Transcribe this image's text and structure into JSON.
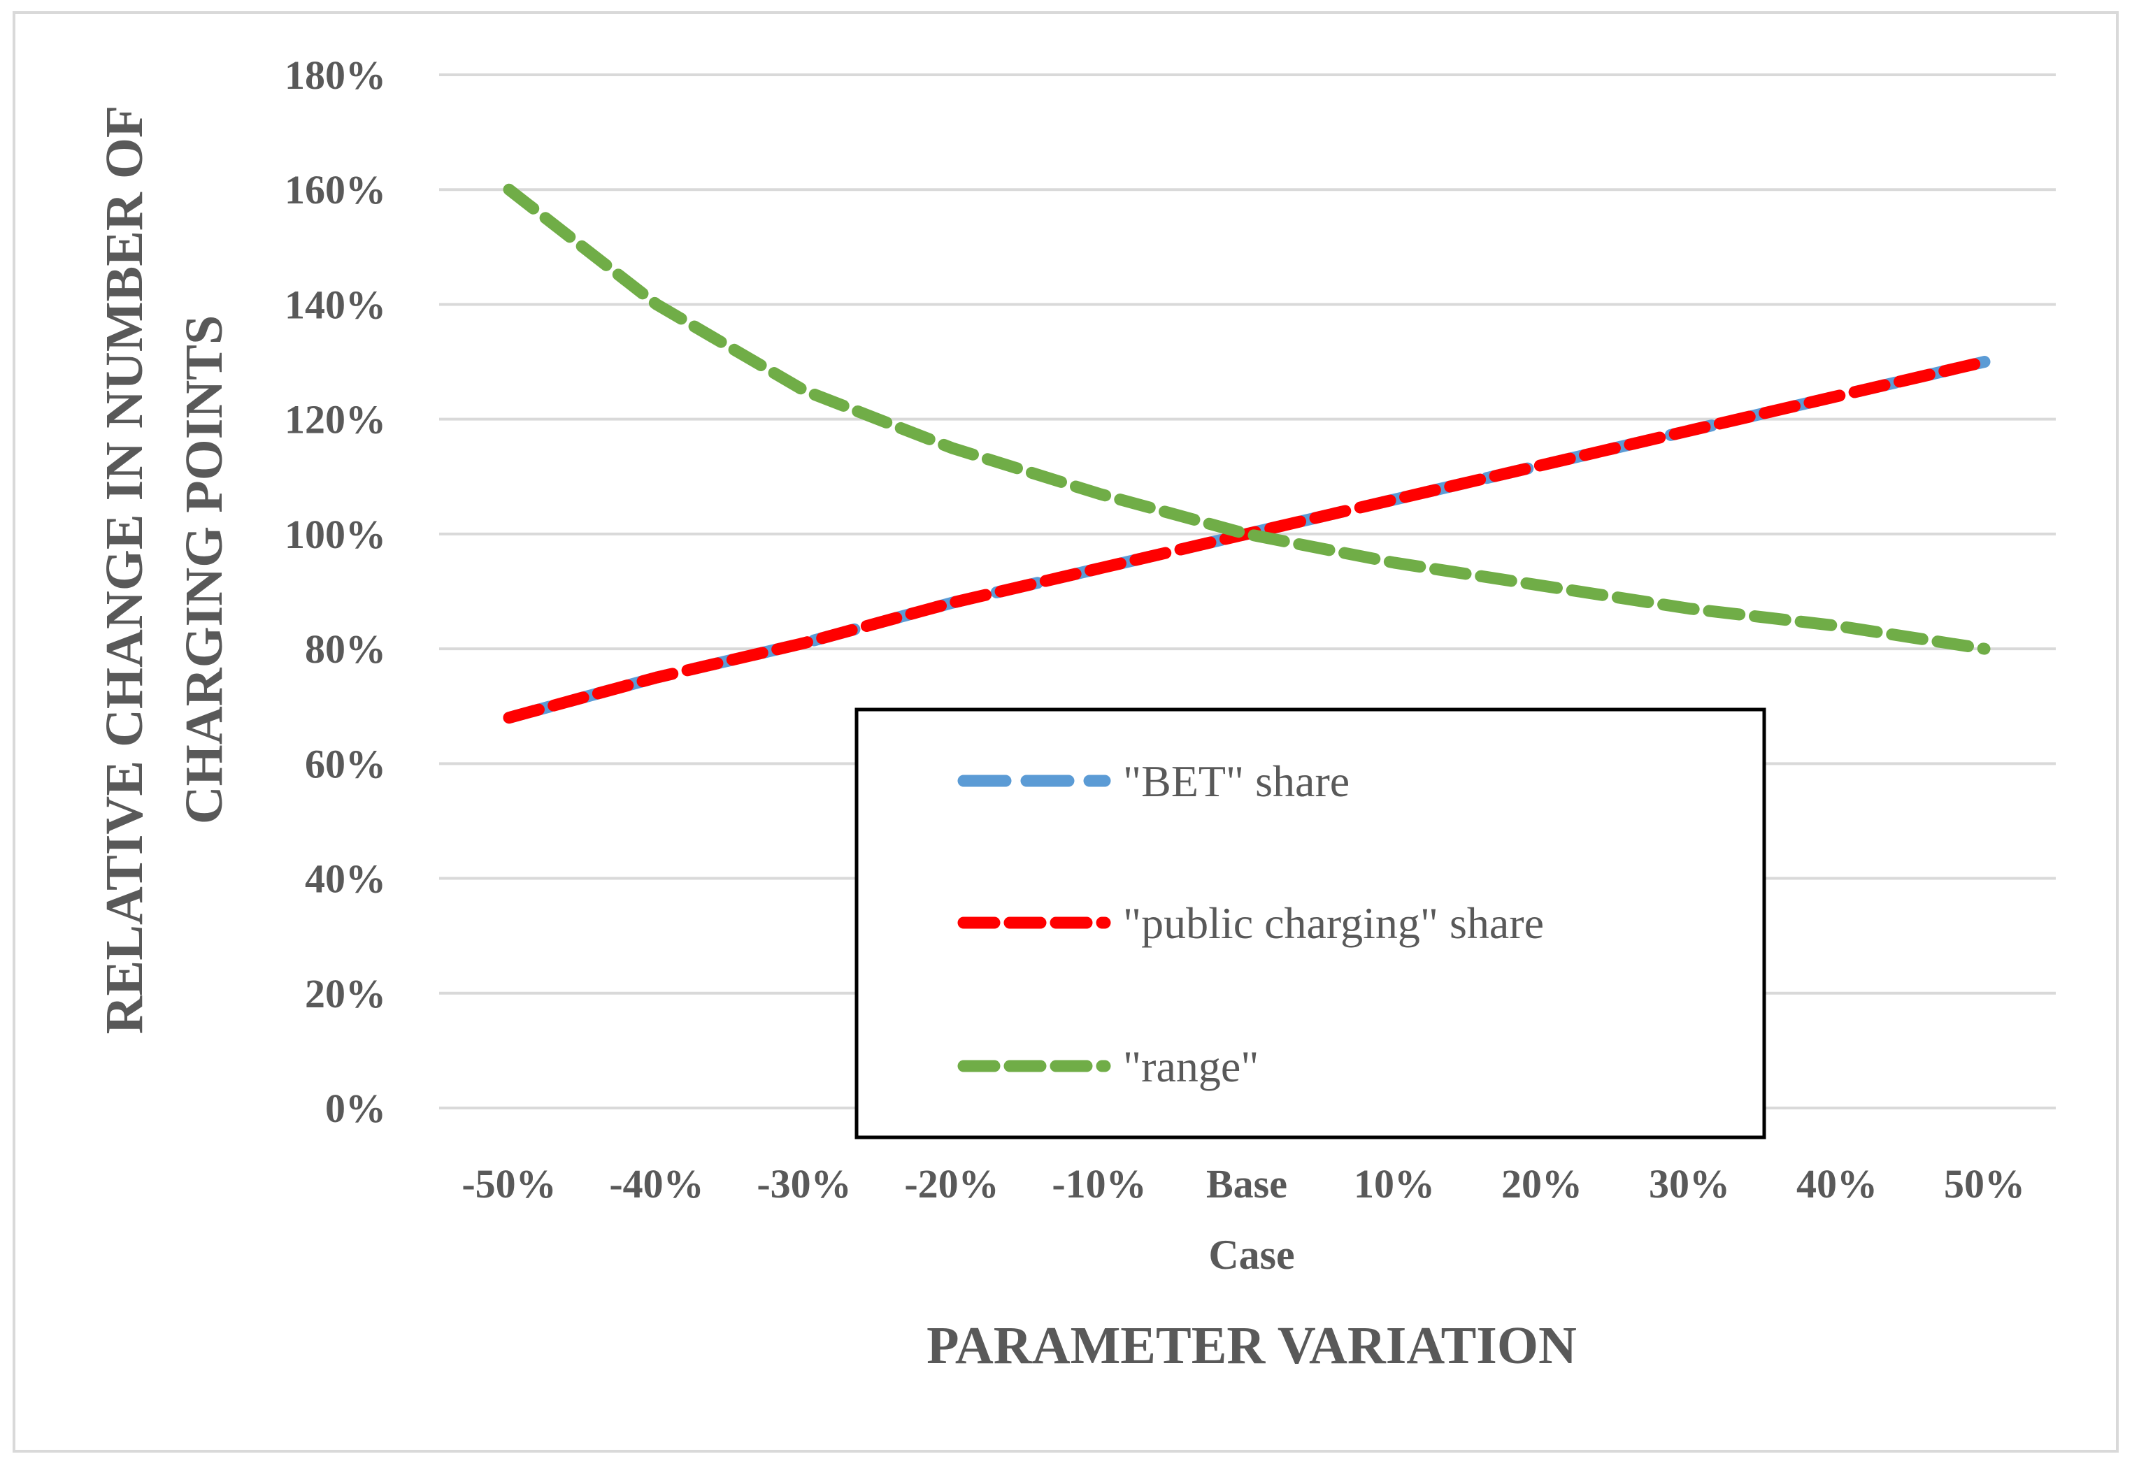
{
  "chart_data": {
    "type": "line",
    "title": "",
    "xlabel": "PARAMETER VARIATION",
    "x_case_label": "Case",
    "ylabel_lines": [
      "RELATIVE CHANGE IN NUMBER OF",
      "CHARGING POINTS"
    ],
    "categories": [
      "-50%",
      "-40%",
      "-30%",
      "-20%",
      "-10%",
      "Base",
      "10%",
      "20%",
      "30%",
      "40%",
      "50%"
    ],
    "yticks": [
      "0%",
      "20%",
      "40%",
      "60%",
      "80%",
      "100%",
      "120%",
      "140%",
      "160%",
      "180%"
    ],
    "ylim": [
      0,
      180
    ],
    "grid": true,
    "legend_position": "bottom-center",
    "series": [
      {
        "name": "\"BET\" share",
        "color": "#5b9bd5",
        "dash": "long",
        "values": [
          68,
          75,
          81,
          88,
          94,
          100,
          106,
          112,
          118,
          124,
          130
        ]
      },
      {
        "name": "\"public charging\" share",
        "color": "#ff0000",
        "dash": "short",
        "values": [
          68,
          75,
          81,
          88,
          94,
          100,
          106,
          112,
          118,
          124,
          130
        ]
      },
      {
        "name": "\"range\"",
        "color": "#70ad47",
        "dash": "short",
        "values": [
          160,
          140,
          125,
          115,
          107,
          100,
          95,
          91,
          87,
          84,
          80
        ]
      }
    ]
  }
}
